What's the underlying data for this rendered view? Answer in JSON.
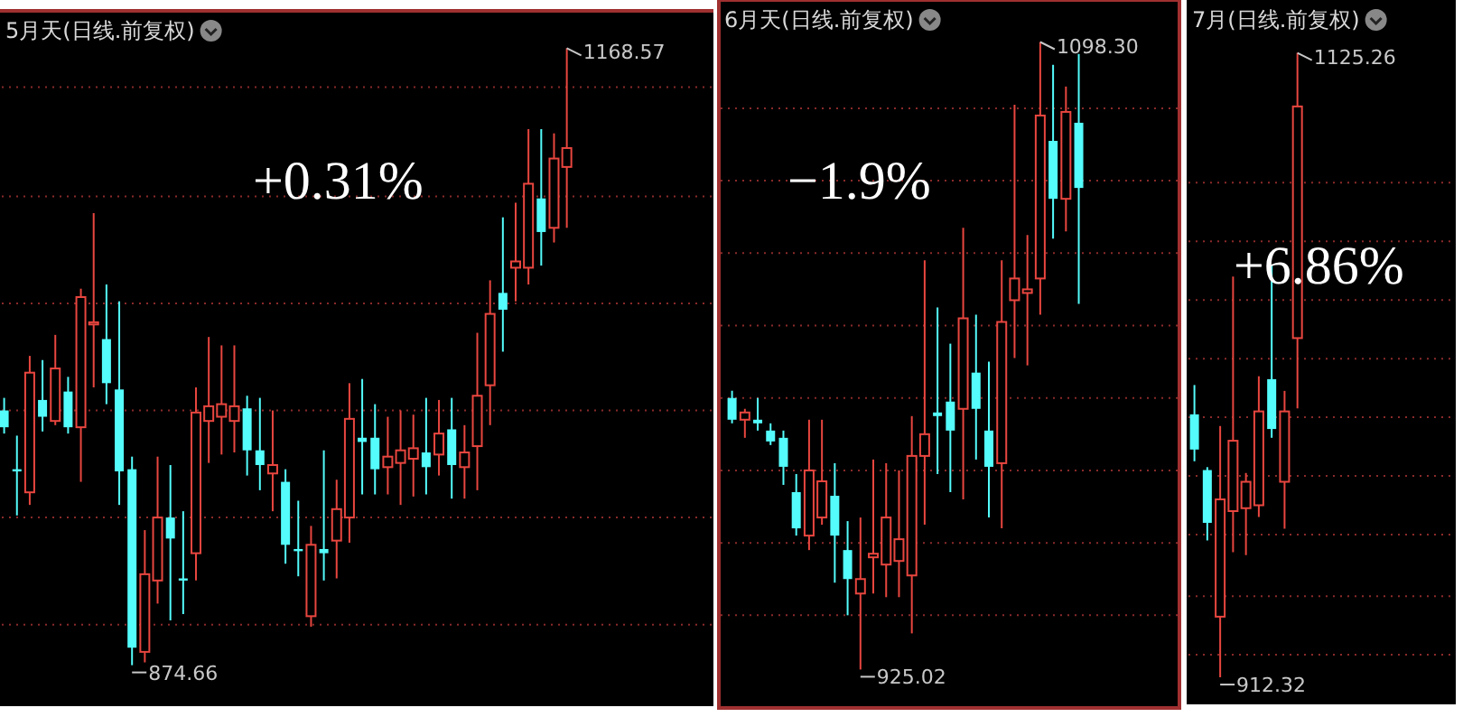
{
  "chart_data": [
    {
      "type": "candlestick",
      "title": "5月天(日线.前复权)",
      "grid": "y",
      "categories": [
        null,
        null,
        null,
        null,
        null,
        null,
        null,
        null,
        null,
        null,
        null,
        null,
        null,
        null,
        null,
        null,
        null,
        null,
        null,
        null,
        null,
        null,
        null,
        null,
        null,
        null,
        null,
        null,
        null,
        null,
        null,
        null,
        null,
        null,
        null,
        null,
        null,
        null,
        null,
        null,
        null,
        null,
        null,
        null,
        null
      ],
      "ohlc": [
        [
          996,
          1002,
          985,
          988
        ],
        [
          968,
          984,
          946,
          967
        ],
        [
          957,
          1022,
          951,
          1014
        ],
        [
          1001,
          1020,
          986,
          993
        ],
        [
          991,
          1032,
          989,
          1016
        ],
        [
          1005,
          1012,
          985,
          988
        ],
        [
          988,
          1054,
          962,
          1050
        ],
        [
          1037,
          1090,
          1007,
          1038
        ],
        [
          1030,
          1056,
          999,
          1009
        ],
        [
          1006,
          1048,
          951,
          967
        ],
        [
          968,
          974,
          874.66,
          883
        ],
        [
          881,
          939,
          876,
          918
        ],
        [
          915,
          974,
          904,
          945
        ],
        [
          945,
          970,
          896,
          935
        ],
        [
          916,
          948,
          899,
          915
        ],
        [
          928,
          1007,
          915,
          995
        ],
        [
          991,
          1031,
          971,
          998
        ],
        [
          993,
          1027,
          975,
          999
        ],
        [
          991,
          1027,
          976,
          998
        ],
        [
          997,
          1003,
          965,
          977
        ],
        [
          977,
          1002,
          958,
          970
        ],
        [
          966,
          996,
          948,
          970
        ],
        [
          962,
          968,
          923,
          932
        ],
        [
          930,
          953,
          917,
          929
        ],
        [
          898,
          941,
          893,
          932
        ],
        [
          930,
          977,
          915,
          928
        ],
        [
          934,
          963,
          916,
          949
        ],
        [
          945,
          1009,
          933,
          992
        ],
        [
          983,
          1011,
          956,
          981
        ],
        [
          983,
          999,
          956,
          968
        ],
        [
          969,
          993,
          956,
          974
        ],
        [
          971,
          996,
          951,
          977
        ],
        [
          973,
          994,
          955,
          978
        ],
        [
          976,
          1002,
          956,
          969
        ],
        [
          975,
          1001,
          965,
          985
        ],
        [
          987,
          1002,
          954,
          970
        ],
        [
          969,
          989,
          954,
          976
        ],
        [
          979,
          1033,
          958,
          1003
        ],
        [
          1008,
          1058,
          989,
          1042
        ],
        [
          1052,
          1088,
          1024,
          1044
        ],
        [
          1064,
          1095,
          1048,
          1067
        ],
        [
          1064,
          1130,
          1056,
          1104
        ],
        [
          1097,
          1130,
          1065,
          1081
        ],
        [
          1083,
          1128,
          1076,
          1116
        ],
        [
          1112,
          1168.57,
          1083,
          1121
        ]
      ],
      "colors": [
        "#54fcfc",
        "#54fcfc",
        "#e8463f",
        "#54fcfc",
        "#e8463f",
        "#54fcfc",
        "#e8463f",
        "#e8463f",
        "#54fcfc",
        "#54fcfc",
        "#54fcfc",
        "#e8463f",
        "#e8463f",
        "#54fcfc",
        "#54fcfc",
        "#e8463f",
        "#e8463f",
        "#e8463f",
        "#e8463f",
        "#54fcfc",
        "#54fcfc",
        "#e8463f",
        "#54fcfc",
        "#54fcfc",
        "#e8463f",
        "#54fcfc",
        "#e8463f",
        "#e8463f",
        "#54fcfc",
        "#54fcfc",
        "#e8463f",
        "#e8463f",
        "#e8463f",
        "#54fcfc",
        "#e8463f",
        "#54fcfc",
        "#e8463f",
        "#e8463f",
        "#e8463f",
        "#54fcfc",
        "#e8463f",
        "#e8463f",
        "#54fcfc",
        "#e8463f",
        "#e8463f"
      ],
      "ylim": [
        856,
        1185.5
      ],
      "yticks": [
        {
          "value": 1150,
          "label": null
        },
        {
          "value": 1098,
          "label": null
        },
        {
          "value": 1047,
          "label": null
        },
        {
          "value": 996,
          "label": null
        },
        {
          "value": 945,
          "label": null
        },
        {
          "value": 894,
          "label": null
        }
      ],
      "annotations": [
        "+0.31%",
        "1168.57",
        "874.66"
      ]
    },
    {
      "type": "candlestick",
      "title": "6月天(日线.前复权)",
      "grid": "y",
      "categories": [
        null,
        null,
        null,
        null,
        null,
        null,
        null,
        null,
        null,
        null,
        null,
        null,
        null,
        null,
        null,
        null,
        null,
        null,
        null,
        null,
        null,
        null,
        null,
        null,
        null,
        null,
        null,
        null
      ],
      "ohlc": [
        [
          1000,
          1002,
          993,
          994
        ],
        [
          994,
          997,
          989,
          996
        ],
        [
          994,
          1000,
          991,
          993
        ],
        [
          991,
          993,
          987,
          988
        ],
        [
          989,
          991,
          976,
          981
        ],
        [
          974,
          979,
          962,
          964
        ],
        [
          962,
          994,
          958,
          980
        ],
        [
          967,
          994,
          965,
          977
        ],
        [
          973,
          982,
          949,
          962
        ],
        [
          958,
          966,
          940,
          950
        ],
        [
          946,
          967,
          925.02,
          950
        ],
        [
          956,
          983,
          946,
          957
        ],
        [
          954,
          982,
          945,
          967
        ],
        [
          955,
          980,
          945,
          961
        ],
        [
          951,
          995,
          935,
          984
        ],
        [
          984,
          1038,
          965,
          990
        ],
        [
          996,
          1025,
          979,
          995
        ],
        [
          999,
          1015,
          974,
          991
        ],
        [
          997,
          1047,
          972,
          1022
        ],
        [
          1007,
          1023,
          983,
          997
        ],
        [
          991,
          1010,
          967,
          981
        ],
        [
          982,
          1038,
          964,
          1021
        ],
        [
          1027,
          1081,
          1011,
          1033
        ],
        [
          1029,
          1045,
          1009,
          1030
        ],
        [
          1033,
          1098.3,
          1023,
          1078
        ],
        [
          1071,
          1092,
          1044,
          1055
        ],
        [
          1055,
          1086,
          1046,
          1079
        ],
        [
          1076,
          1095,
          1026,
          1058
        ]
      ],
      "colors": [
        "#54fcfc",
        "#e8463f",
        "#54fcfc",
        "#54fcfc",
        "#54fcfc",
        "#54fcfc",
        "#e8463f",
        "#e8463f",
        "#54fcfc",
        "#54fcfc",
        "#e8463f",
        "#e8463f",
        "#e8463f",
        "#e8463f",
        "#e8463f",
        "#e8463f",
        "#54fcfc",
        "#54fcfc",
        "#e8463f",
        "#54fcfc",
        "#54fcfc",
        "#e8463f",
        "#e8463f",
        "#e8463f",
        "#e8463f",
        "#54fcfc",
        "#e8463f",
        "#54fcfc"
      ],
      "ylim": [
        914.9,
        1109.4
      ],
      "yticks": [
        {
          "value": 1080,
          "label": null
        },
        {
          "value": 1060,
          "label": null
        },
        {
          "value": 1040,
          "label": null
        },
        {
          "value": 1020,
          "label": null
        },
        {
          "value": 1000,
          "label": null
        },
        {
          "value": 980,
          "label": null
        },
        {
          "value": 960,
          "label": null
        },
        {
          "value": 940,
          "label": null
        }
      ],
      "annotations": [
        "−1.9%",
        "1098.30",
        "925.02"
      ]
    },
    {
      "type": "candlestick",
      "title": "7月(日线.前复权)",
      "grid": "y",
      "categories": [
        null,
        null,
        null,
        null,
        null,
        null,
        null,
        null,
        null
      ],
      "ohlc": [
        [
          1002,
          1012,
          986,
          990
        ],
        [
          983,
          984,
          959,
          965
        ],
        [
          933,
          998,
          912.32,
          973
        ],
        [
          969,
          1049,
          955,
          993
        ],
        [
          970,
          982,
          954,
          979
        ],
        [
          971,
          1015,
          967,
          1003
        ],
        [
          1014,
          1053,
          994,
          997
        ],
        [
          979,
          1010,
          963,
          1003
        ],
        [
          1028,
          1125.26,
          1004,
          1107
        ]
      ],
      "colors": [
        "#54fcfc",
        "#54fcfc",
        "#e8463f",
        "#e8463f",
        "#e8463f",
        "#e8463f",
        "#54fcfc",
        "#e8463f",
        "#e8463f"
      ],
      "ylim": [
        903.1,
        1143.3
      ],
      "yticks": [
        {
          "value": 1081,
          "label": null
        },
        {
          "value": 1061,
          "label": null
        },
        {
          "value": 1041,
          "label": null
        },
        {
          "value": 1021,
          "label": null
        },
        {
          "value": 1001,
          "label": null
        },
        {
          "value": 981,
          "label": null
        },
        {
          "value": 961,
          "label": null
        },
        {
          "value": 940,
          "label": null
        },
        {
          "value": 920,
          "label": null
        }
      ],
      "annotations": [
        "+6.86%",
        "1125.26",
        "912.32"
      ]
    }
  ]
}
